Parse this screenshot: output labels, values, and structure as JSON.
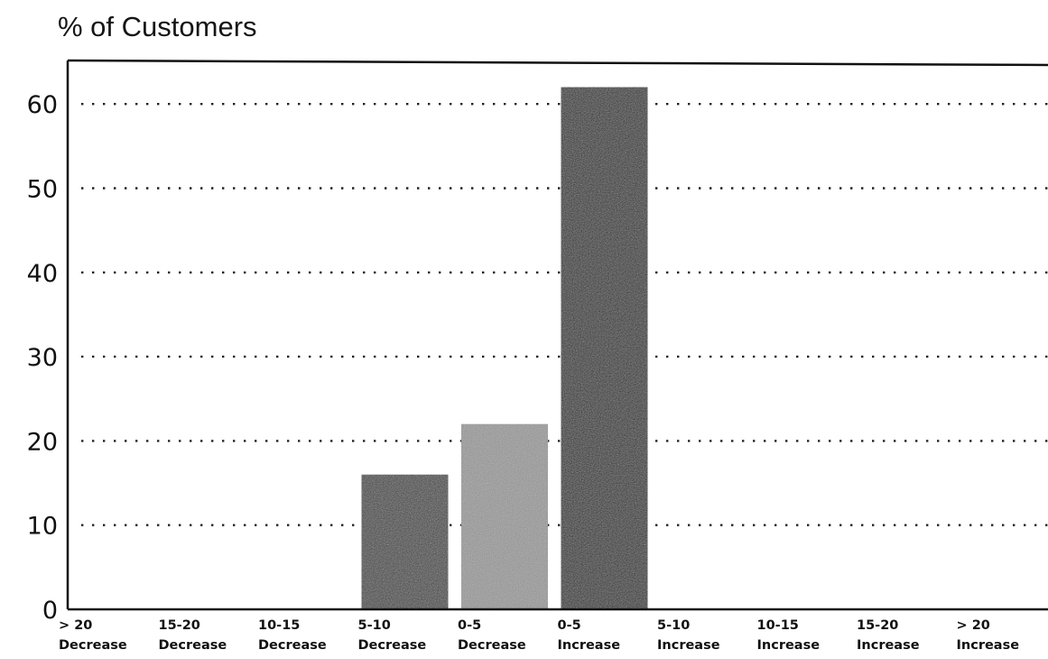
{
  "chart_data": {
    "type": "bar",
    "title": "",
    "xlabel": "",
    "ylabel": "% of Customers",
    "ylim": [
      0,
      65
    ],
    "yticks": [
      0,
      10,
      20,
      30,
      40,
      50,
      60
    ],
    "grid": "horizontal dotted",
    "legend": "none",
    "categories": [
      {
        "line1": "> 20",
        "line2": "Decrease"
      },
      {
        "line1": "15-20",
        "line2": "Decrease"
      },
      {
        "line1": "10-15",
        "line2": "Decrease"
      },
      {
        "line1": "5-10",
        "line2": "Decrease"
      },
      {
        "line1": "0-5",
        "line2": "Decrease"
      },
      {
        "line1": "0-5",
        "line2": "Increase"
      },
      {
        "line1": "5-10",
        "line2": "Increase"
      },
      {
        "line1": "10-15",
        "line2": "Increase"
      },
      {
        "line1": "15-20",
        "line2": "Increase"
      },
      {
        "line1": "> 20",
        "line2": "Increase"
      }
    ],
    "values": [
      0,
      0,
      0,
      16,
      22,
      62,
      0,
      0,
      0,
      0
    ],
    "bar_colors": [
      "#3a3a3a",
      "#3a3a3a",
      "#3a3a3a",
      "#3a3a3a",
      "#8f8f8f",
      "#1c1c1c",
      "#3a3a3a",
      "#3a3a3a",
      "#3a3a3a",
      "#3a3a3a"
    ]
  }
}
